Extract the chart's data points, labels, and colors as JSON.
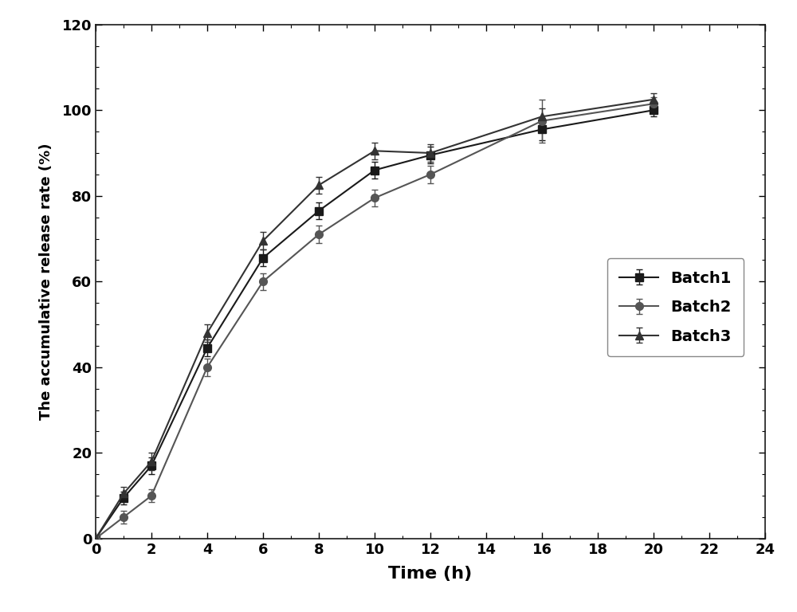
{
  "batch1": {
    "x": [
      0,
      1,
      2,
      4,
      6,
      8,
      10,
      12,
      16,
      20
    ],
    "y": [
      0,
      9.5,
      17.0,
      44.5,
      65.5,
      76.5,
      86.0,
      89.5,
      95.5,
      100.0
    ],
    "yerr": [
      0,
      1.5,
      2.0,
      2.0,
      2.0,
      2.0,
      2.0,
      2.0,
      2.5,
      1.5
    ],
    "color": "#1a1a1a",
    "marker": "s",
    "label": "Batch1"
  },
  "batch2": {
    "x": [
      0,
      1,
      2,
      4,
      6,
      8,
      10,
      12,
      16,
      20
    ],
    "y": [
      0,
      5.0,
      10.0,
      40.0,
      60.0,
      71.0,
      79.5,
      85.0,
      97.5,
      101.5
    ],
    "yerr": [
      0,
      1.5,
      1.5,
      2.0,
      2.0,
      2.0,
      2.0,
      2.0,
      5.0,
      1.5
    ],
    "color": "#555555",
    "marker": "o",
    "label": "Batch2"
  },
  "batch3": {
    "x": [
      0,
      1,
      2,
      4,
      6,
      8,
      10,
      12,
      16,
      20
    ],
    "y": [
      0,
      10.5,
      18.0,
      48.0,
      69.5,
      82.5,
      90.5,
      90.0,
      98.5,
      102.5
    ],
    "yerr": [
      0,
      1.5,
      2.0,
      2.0,
      2.0,
      2.0,
      2.0,
      2.0,
      2.0,
      1.5
    ],
    "color": "#333333",
    "marker": "^",
    "label": "Batch3"
  },
  "xlabel": "Time (h)",
  "ylabel": "The accumulative release rate (%)",
  "xlim": [
    0,
    24
  ],
  "ylim": [
    0,
    120
  ],
  "xticks": [
    0,
    2,
    4,
    6,
    8,
    10,
    12,
    14,
    16,
    18,
    20,
    22,
    24
  ],
  "yticks": [
    0,
    20,
    40,
    60,
    80,
    100,
    120
  ],
  "background_color": "#ffffff",
  "linewidth": 1.5,
  "markersize": 7,
  "capsize": 3,
  "legend_fontsize": 14
}
